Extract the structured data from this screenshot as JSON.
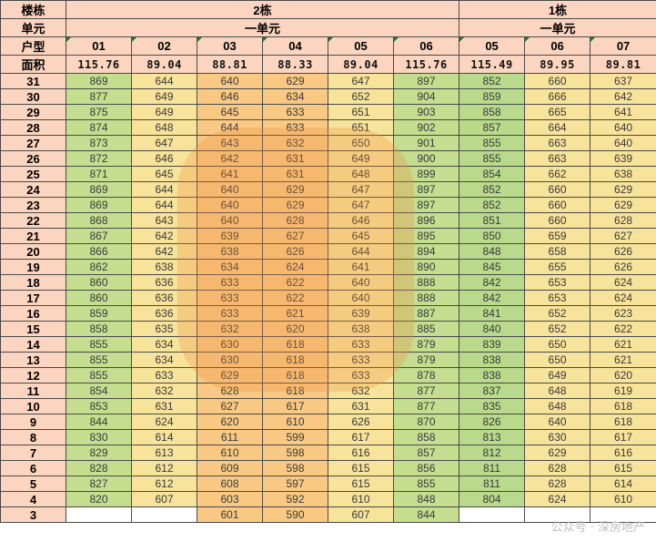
{
  "header": {
    "row1": [
      "楼栋",
      "2栋",
      "1栋"
    ],
    "row2": [
      "单元",
      "一单元",
      "一单元"
    ],
    "row3": [
      "户型",
      "01",
      "02",
      "03",
      "04",
      "05",
      "06",
      "05",
      "06",
      "07"
    ],
    "row4": [
      "面积",
      "115.76",
      "89.04",
      "88.81",
      "88.33",
      "89.04",
      "115.76",
      "115.49",
      "89.95",
      "89.81"
    ]
  },
  "rows": [
    {
      "floor": "31",
      "v": [
        "869",
        "644",
        "640",
        "629",
        "647",
        "897",
        "852",
        "660",
        "637"
      ]
    },
    {
      "floor": "30",
      "v": [
        "877",
        "649",
        "646",
        "634",
        "652",
        "904",
        "859",
        "666",
        "642"
      ]
    },
    {
      "floor": "29",
      "v": [
        "875",
        "649",
        "645",
        "633",
        "651",
        "903",
        "858",
        "665",
        "641"
      ]
    },
    {
      "floor": "28",
      "v": [
        "874",
        "648",
        "644",
        "633",
        "651",
        "902",
        "857",
        "664",
        "640"
      ]
    },
    {
      "floor": "27",
      "v": [
        "873",
        "647",
        "643",
        "632",
        "650",
        "901",
        "855",
        "663",
        "640"
      ]
    },
    {
      "floor": "26",
      "v": [
        "872",
        "646",
        "642",
        "631",
        "649",
        "900",
        "855",
        "663",
        "639"
      ]
    },
    {
      "floor": "25",
      "v": [
        "871",
        "645",
        "641",
        "631",
        "648",
        "899",
        "854",
        "662",
        "638"
      ]
    },
    {
      "floor": "24",
      "v": [
        "869",
        "644",
        "640",
        "629",
        "647",
        "897",
        "852",
        "660",
        "629"
      ]
    },
    {
      "floor": "23",
      "v": [
        "869",
        "644",
        "640",
        "629",
        "647",
        "897",
        "852",
        "660",
        "629"
      ]
    },
    {
      "floor": "22",
      "v": [
        "868",
        "643",
        "640",
        "628",
        "646",
        "896",
        "851",
        "660",
        "628"
      ]
    },
    {
      "floor": "21",
      "v": [
        "867",
        "642",
        "639",
        "627",
        "645",
        "895",
        "850",
        "659",
        "627"
      ]
    },
    {
      "floor": "20",
      "v": [
        "866",
        "642",
        "638",
        "626",
        "644",
        "894",
        "848",
        "658",
        "626"
      ]
    },
    {
      "floor": "19",
      "v": [
        "862",
        "638",
        "634",
        "624",
        "641",
        "890",
        "845",
        "655",
        "626"
      ]
    },
    {
      "floor": "18",
      "v": [
        "860",
        "636",
        "633",
        "622",
        "640",
        "888",
        "842",
        "653",
        "624"
      ]
    },
    {
      "floor": "17",
      "v": [
        "860",
        "636",
        "633",
        "622",
        "640",
        "888",
        "842",
        "653",
        "624"
      ]
    },
    {
      "floor": "16",
      "v": [
        "859",
        "636",
        "633",
        "621",
        "639",
        "887",
        "841",
        "652",
        "623"
      ]
    },
    {
      "floor": "15",
      "v": [
        "858",
        "635",
        "632",
        "620",
        "638",
        "885",
        "840",
        "652",
        "622"
      ]
    },
    {
      "floor": "14",
      "v": [
        "855",
        "634",
        "630",
        "618",
        "633",
        "879",
        "839",
        "650",
        "621"
      ]
    },
    {
      "floor": "13",
      "v": [
        "855",
        "634",
        "630",
        "618",
        "633",
        "879",
        "838",
        "650",
        "621"
      ]
    },
    {
      "floor": "12",
      "v": [
        "855",
        "633",
        "629",
        "618",
        "633",
        "878",
        "838",
        "649",
        "620"
      ]
    },
    {
      "floor": "11",
      "v": [
        "854",
        "632",
        "628",
        "618",
        "632",
        "877",
        "837",
        "648",
        "619"
      ]
    },
    {
      "floor": "10",
      "v": [
        "853",
        "631",
        "627",
        "617",
        "631",
        "877",
        "835",
        "648",
        "618"
      ]
    },
    {
      "floor": "9",
      "v": [
        "844",
        "624",
        "620",
        "610",
        "626",
        "870",
        "826",
        "640",
        "618"
      ]
    },
    {
      "floor": "8",
      "v": [
        "830",
        "614",
        "611",
        "599",
        "617",
        "858",
        "813",
        "630",
        "617"
      ]
    },
    {
      "floor": "7",
      "v": [
        "829",
        "613",
        "610",
        "598",
        "616",
        "857",
        "812",
        "629",
        "616"
      ]
    },
    {
      "floor": "6",
      "v": [
        "828",
        "612",
        "609",
        "598",
        "615",
        "856",
        "811",
        "628",
        "615"
      ]
    },
    {
      "floor": "5",
      "v": [
        "827",
        "612",
        "608",
        "597",
        "615",
        "855",
        "811",
        "628",
        "614"
      ]
    },
    {
      "floor": "4",
      "v": [
        "820",
        "607",
        "603",
        "592",
        "610",
        "848",
        "804",
        "624",
        "610"
      ]
    },
    {
      "floor": "3",
      "v": [
        "",
        "",
        "601",
        "590",
        "607",
        "844",
        "",
        "",
        ""
      ]
    }
  ],
  "watermark_text": "公众号 · 深房地产",
  "colors": {
    "header_bg": "#fbd5bf",
    "green": "#c4dd8f",
    "yellow": "#f7e39a",
    "orange": "#f9c983",
    "watermark": "#bdbdbd"
  }
}
